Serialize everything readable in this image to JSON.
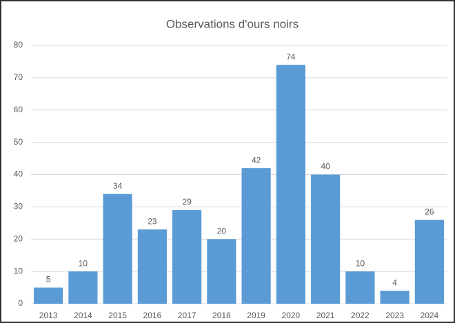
{
  "chart_data": {
    "type": "bar",
    "title": "Observations d'ours noirs",
    "categories": [
      "2013",
      "2014",
      "2015",
      "2016",
      "2017",
      "2018",
      "2019",
      "2020",
      "2021",
      "2022",
      "2023",
      "2024"
    ],
    "values": [
      5,
      10,
      34,
      23,
      29,
      20,
      42,
      74,
      40,
      10,
      4,
      26
    ],
    "color": "#5b9bd5",
    "ylim": [
      0,
      80
    ],
    "yticks": [
      0,
      10,
      20,
      30,
      40,
      50,
      60,
      70,
      80
    ],
    "grid": true
  }
}
